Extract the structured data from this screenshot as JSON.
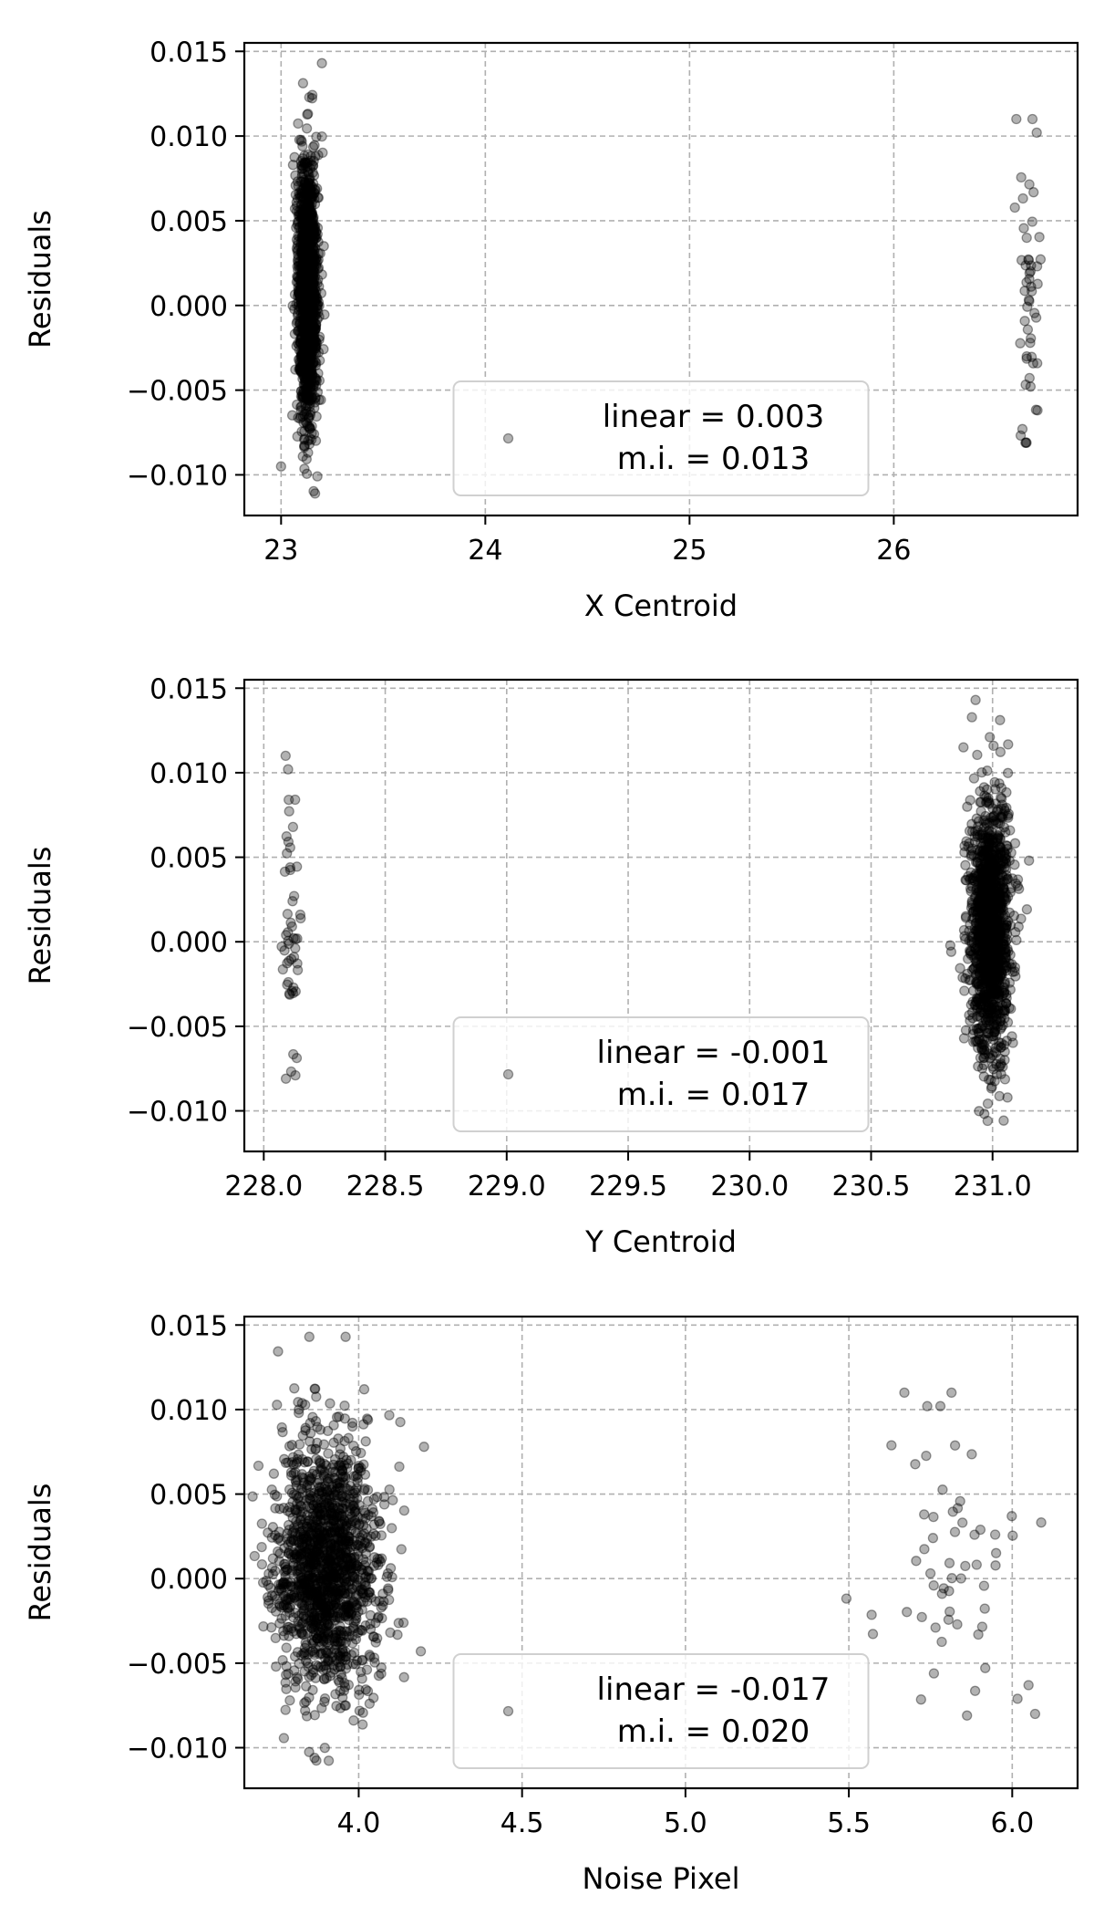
{
  "chart_data": [
    {
      "type": "scatter",
      "xlabel": "X Centroid",
      "ylabel": "Residuals",
      "xlim": [
        22.82,
        26.9
      ],
      "ylim": [
        -0.0124,
        0.0155
      ],
      "xticks": [
        23,
        24,
        25,
        26
      ],
      "xtick_labels": [
        "23",
        "24",
        "25",
        "26"
      ],
      "yticks": [
        0.015,
        0.01,
        0.005,
        0.0,
        -0.005,
        -0.01
      ],
      "ytick_labels": [
        "0.015",
        "0.010",
        "0.005",
        "0.000",
        "−0.005",
        "−0.010"
      ],
      "grid": true,
      "legend": {
        "placement": "lower-center",
        "lines": [
          "linear = 0.003",
          "m.i. = 0.013"
        ]
      },
      "clusters": [
        {
          "x_center": 23.13,
          "x_spread": 0.025,
          "y_center": 0.0008,
          "y_spread": 0.0037,
          "n": 1400,
          "y_min": -0.0111,
          "y_max": 0.0143
        },
        {
          "x_center": 26.66,
          "x_spread": 0.035,
          "y_center": 0.0005,
          "y_spread": 0.0043,
          "n": 48,
          "y_min": -0.0081,
          "y_max": 0.011
        }
      ],
      "points": [
        [
          23.0,
          -0.0095
        ],
        [
          23.2,
          0.0143
        ],
        [
          26.6,
          0.011
        ],
        [
          26.7,
          0.0102
        ],
        [
          26.63,
          -0.0073
        ],
        [
          26.65,
          -0.0081
        ]
      ],
      "marker": {
        "color": "#000000",
        "opacity": 0.3,
        "shape": "circle"
      }
    },
    {
      "type": "scatter",
      "xlabel": "Y Centroid",
      "ylabel": "Residuals",
      "xlim": [
        227.92,
        231.35
      ],
      "ylim": [
        -0.0124,
        0.0155
      ],
      "xticks": [
        228.0,
        228.5,
        229.0,
        229.5,
        230.0,
        230.5,
        231.0
      ],
      "xtick_labels": [
        "228.0",
        "228.5",
        "229.0",
        "229.5",
        "230.0",
        "230.5",
        "231.0"
      ],
      "yticks": [
        0.015,
        0.01,
        0.005,
        0.0,
        -0.005,
        -0.01
      ],
      "ytick_labels": [
        "0.015",
        "0.010",
        "0.005",
        "0.000",
        "−0.005",
        "−0.010"
      ],
      "grid": true,
      "legend": {
        "placement": "lower-center",
        "lines": [
          "linear = -0.001",
          "m.i. = 0.017"
        ]
      },
      "clusters": [
        {
          "x_center": 228.11,
          "x_spread": 0.02,
          "y_center": 0.0005,
          "y_spread": 0.0043,
          "n": 48,
          "y_min": -0.0081,
          "y_max": 0.011
        },
        {
          "x_center": 230.99,
          "x_spread": 0.04,
          "y_center": 0.0008,
          "y_spread": 0.0037,
          "n": 1400,
          "y_min": -0.0111,
          "y_max": 0.0143
        }
      ],
      "points": [
        [
          228.09,
          0.011
        ],
        [
          228.1,
          0.0102
        ],
        [
          228.13,
          -0.0079
        ],
        [
          230.88,
          0.0115
        ],
        [
          230.93,
          0.0143
        ],
        [
          231.15,
          0.0048
        ]
      ],
      "marker": {
        "color": "#000000",
        "opacity": 0.3,
        "shape": "circle"
      }
    },
    {
      "type": "scatter",
      "xlabel": "Noise Pixel",
      "ylabel": "Residuals",
      "xlim": [
        3.65,
        6.2
      ],
      "ylim": [
        -0.0124,
        0.0155
      ],
      "xticks": [
        4.0,
        4.5,
        5.0,
        5.5,
        6.0
      ],
      "xtick_labels": [
        "4.0",
        "4.5",
        "5.0",
        "5.5",
        "6.0"
      ],
      "yticks": [
        0.015,
        0.01,
        0.005,
        0.0,
        -0.005,
        -0.01
      ],
      "ytick_labels": [
        "0.015",
        "0.010",
        "0.005",
        "0.000",
        "−0.005",
        "−0.010"
      ],
      "grid": true,
      "legend": {
        "placement": "lower-center",
        "lines": [
          "linear = -0.017",
          "m.i. = 0.020"
        ]
      },
      "clusters": [
        {
          "x_center": 3.9,
          "x_spread": 0.08,
          "y_center": 0.0008,
          "y_spread": 0.0037,
          "n": 1500,
          "y_min": -0.0111,
          "y_max": 0.0143
        },
        {
          "x_center": 5.85,
          "x_spread": 0.1,
          "y_center": 0.0005,
          "y_spread": 0.0043,
          "n": 55,
          "y_min": -0.0081,
          "y_max": 0.011
        }
      ],
      "points": [
        [
          3.96,
          0.0143
        ],
        [
          5.67,
          0.011
        ],
        [
          5.74,
          0.0102
        ],
        [
          5.78,
          0.0102
        ],
        [
          6.05,
          -0.0063
        ],
        [
          6.07,
          -0.008
        ],
        [
          4.19,
          -0.0043
        ],
        [
          4.2,
          0.0078
        ]
      ],
      "marker": {
        "color": "#000000",
        "opacity": 0.3,
        "shape": "circle"
      }
    }
  ]
}
